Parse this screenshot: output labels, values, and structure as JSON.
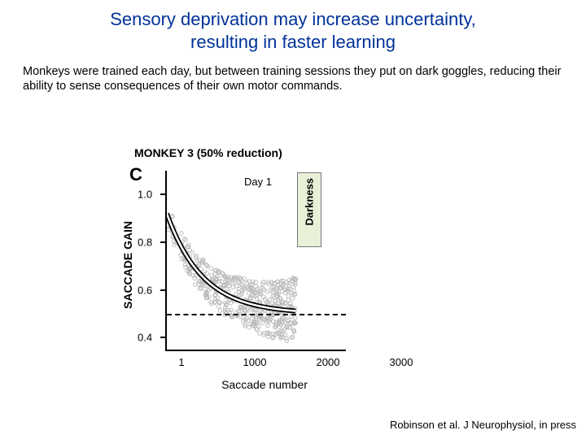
{
  "title_line1": "Sensory deprivation may increase uncertainty,",
  "title_line2": "resulting in faster learning",
  "body": "Monkeys were trained each day, but between training sessions they put on dark goggles, reducing their ability to sense consequences of their own motor commands.",
  "panel_title": "MONKEY 3 (50% reduction)",
  "panel_letter": "C",
  "day_label": "Day 1",
  "darkness_label": "Darkness",
  "y_axis_label": "SACCADE GAIN",
  "x_axis_label": "Saccade number",
  "citation": "Robinson et al. J Neurophysiol, in press",
  "chart": {
    "type": "scatter-with-fit",
    "background_color": "#ffffff",
    "ylim": [
      0.35,
      1.1
    ],
    "xlim": [
      0,
      1000
    ],
    "y_ticks": [
      0.4,
      0.6,
      0.8,
      1.0
    ],
    "asymptote": 0.5,
    "day1_end_x": 1000,
    "point_color": "#b8b8b8",
    "point_size": 2.3,
    "curve_color_outer": "#000000",
    "curve_color_inner": "#ffffff",
    "curve": {
      "y0": 0.92,
      "y_inf": 0.5,
      "tau": 280
    },
    "overlay_ticks_x": [
      1,
      1000,
      2000,
      3000
    ],
    "overlay_tick_spacing_px": 90,
    "scatter_seed_n": 520
  },
  "darkness_band": {
    "fill": "#e8f0d8",
    "border": "#777777"
  },
  "colors": {
    "title": "#003399",
    "text": "#000000"
  }
}
